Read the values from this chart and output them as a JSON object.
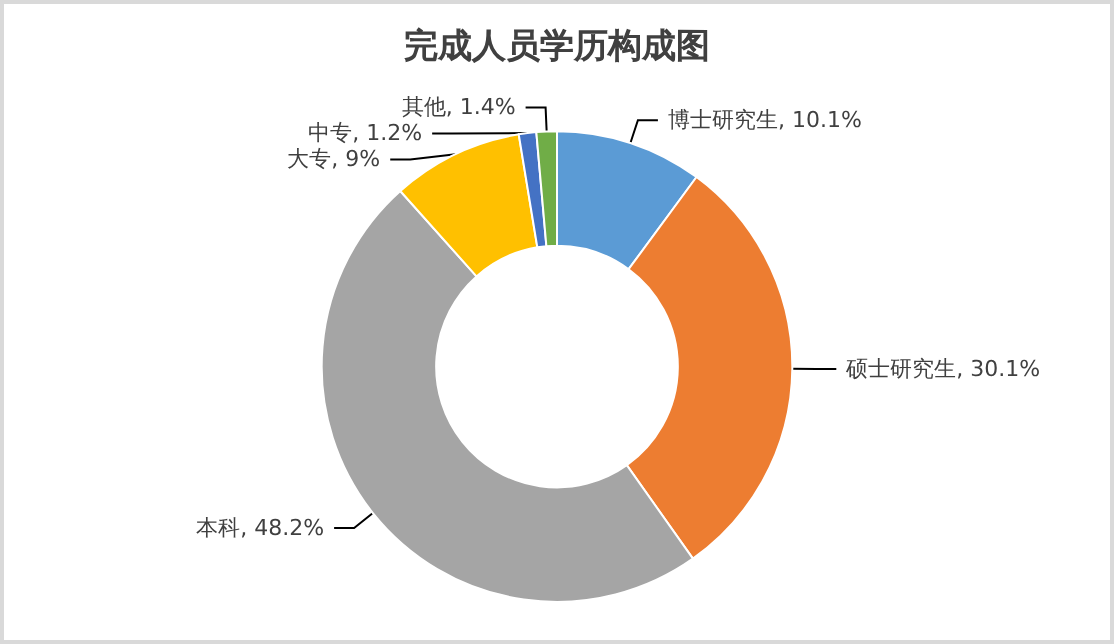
{
  "chart_data": {
    "type": "donut",
    "title": "完成人员学历构成图",
    "categories": [
      "博士研究生",
      "硕士研究生",
      "本科",
      "大专",
      "中专",
      "其他"
    ],
    "values": [
      10.1,
      30.1,
      48.2,
      9,
      1.2,
      1.4
    ],
    "value_labels": [
      "10.1%",
      "30.1%",
      "48.2%",
      "9%",
      "1.2%",
      "1.4%"
    ],
    "colors": [
      "#5b9bd5",
      "#ed7d31",
      "#a5a5a5",
      "#ffc000",
      "#4472c4",
      "#70ad47"
    ],
    "legend": false
  }
}
